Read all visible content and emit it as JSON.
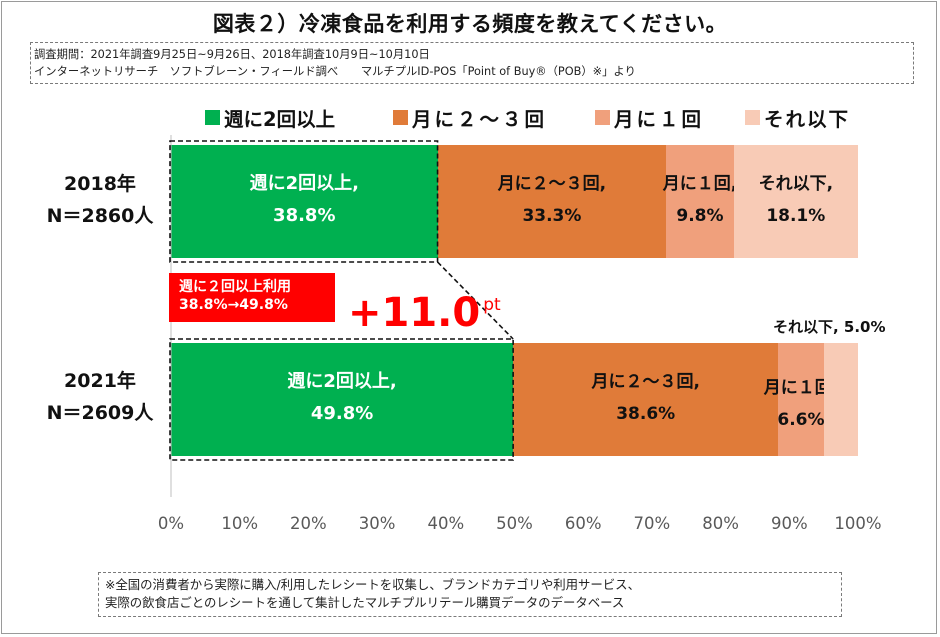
{
  "title": "図表２）冷凍食品を利用する頻度を教えてください。",
  "survey_info": {
    "line1": "調査期間：2021年調査9月25日~9月26日、2018年調査10月9日~10月10日",
    "line2": "インターネットリサーチ　ソフトブレーン・フィールド調べ　　マルチプルID-POS「Point of Buy®（POB）※」より"
  },
  "callout": {
    "line1": "週に２回以上利用",
    "line2": "38.8%→49.8%",
    "increase_value": "+11.0",
    "increase_unit": "pt"
  },
  "footnote": {
    "line1": "※全国の消費者から実際に購入/利用したレシートを収集し、ブランドカテゴリや利用サービス、",
    "line2": "実際の飲食店ごとのレシートを通して集計したマルチプルリテール購買データのデータベース"
  },
  "colors": {
    "weekly_2plus": "#00b050",
    "monthly_2to3": "#e07b39",
    "monthly_1": "#f0a07c",
    "less": "#f8cbb6",
    "callout_red": "#ff0000"
  },
  "chart_data": {
    "type": "bar",
    "orientation": "horizontal",
    "stacked": true,
    "categories": [
      {
        "year": "2018年",
        "n": "N＝2860人"
      },
      {
        "year": "2021年",
        "n": "N＝2609人"
      }
    ],
    "series": [
      {
        "name": "週に2回以上",
        "label": "週に2回以上,",
        "values": [
          38.8,
          49.8
        ],
        "value_labels": [
          "38.8%",
          "49.8%"
        ]
      },
      {
        "name": "月に２～３回",
        "label": "月に２～３回,",
        "values": [
          33.3,
          38.6
        ],
        "value_labels": [
          "33.3%",
          "38.6%"
        ]
      },
      {
        "name": "月に１回",
        "label": "月に１回,",
        "values": [
          9.8,
          6.6
        ],
        "value_labels": [
          "9.8%",
          "6.6%"
        ]
      },
      {
        "name": "それ以下",
        "label": "それ以下,",
        "values": [
          18.1,
          5.0
        ],
        "value_labels": [
          "18.1%",
          "5.0%"
        ]
      }
    ],
    "outside_label_2021_other": "それ以下, 5.0%",
    "x_ticks": [
      "0%",
      "10%",
      "20%",
      "30%",
      "40%",
      "50%",
      "60%",
      "70%",
      "80%",
      "90%",
      "100%"
    ],
    "xlim": [
      0,
      100
    ],
    "grid": false,
    "legend_position": "top"
  }
}
